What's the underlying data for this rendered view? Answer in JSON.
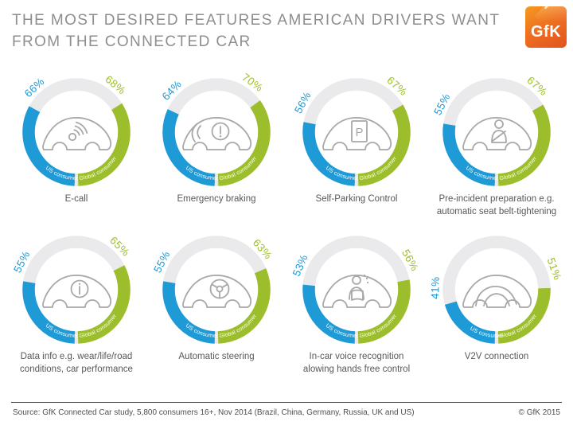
{
  "header": {
    "title": "THE MOST DESIRED FEATURES AMERICAN DRIVERS WANT\nFROM THE CONNECTED CAR",
    "logo_text": "GfK"
  },
  "legend": {
    "us_label": "US consumer",
    "global_label": "Global consumer"
  },
  "colors": {
    "us_blue": "#1E9AD6",
    "global_green": "#9CBE2C",
    "track_gray": "#EAEAEC",
    "icon_gray": "#A8A8A8",
    "title_gray": "#8E8E8E",
    "label_gray": "#585858",
    "logo_orange": "#EE7120"
  },
  "features": [
    {
      "label": "E-call",
      "us": 66,
      "global": 68,
      "icon": "ecall-car-icon"
    },
    {
      "label": "Emergency braking",
      "us": 64,
      "global": 70,
      "icon": "emergency-braking-car-icon"
    },
    {
      "label": "Self-Parking Control",
      "us": 56,
      "global": 67,
      "icon": "self-parking-car-icon"
    },
    {
      "label": "Pre-incident preparation e.g.\nautomatic seat belt-tightening",
      "us": 55,
      "global": 67,
      "icon": "seat-belt-car-icon"
    },
    {
      "label": "Data info e.g. wear/life/road\nconditions, car performance",
      "us": 55,
      "global": 65,
      "icon": "data-info-car-icon"
    },
    {
      "label": "Automatic steering",
      "us": 55,
      "global": 63,
      "icon": "automatic-steering-car-icon"
    },
    {
      "label": "In-car voice recognition\nalowing hands free control",
      "us": 53,
      "global": 56,
      "icon": "voice-recognition-car-icon"
    },
    {
      "label": "V2V connection",
      "us": 41,
      "global": 51,
      "icon": "v2v-connection-car-icon"
    }
  ],
  "footer": {
    "source": "Source: GfK Connected Car study, 5,800 consumers 16+, Nov 2014 (Brazil, China, Germany, Russia, UK and US)",
    "copyright": "© GfK 2015"
  },
  "chart_data": {
    "type": "donut",
    "title": "The most desired features American drivers want from the connected car",
    "unit": "%",
    "categories": [
      "E-call",
      "Emergency braking",
      "Self-Parking Control",
      "Pre-incident preparation e.g. automatic seat belt-tightening",
      "Data info e.g. wear/life/road conditions, car performance",
      "Automatic steering",
      "In-car voice recognition alowing hands free control",
      "V2V connection"
    ],
    "series": [
      {
        "name": "US consumer",
        "color": "#1E9AD6",
        "values": [
          66,
          64,
          56,
          55,
          55,
          55,
          53,
          41
        ]
      },
      {
        "name": "Global consumer",
        "color": "#9CBE2C",
        "values": [
          68,
          70,
          67,
          67,
          65,
          63,
          56,
          51
        ]
      }
    ],
    "layout": "2 rows x 4 donut gauges; US consumer = blue left half-ring, Global consumer = green right half-ring; each half-ring scaled so 100% = 180 degrees; unfilled remainder shown light gray; percentage labels rotated tangentially at arc ends; car feature icon in donut center"
  }
}
